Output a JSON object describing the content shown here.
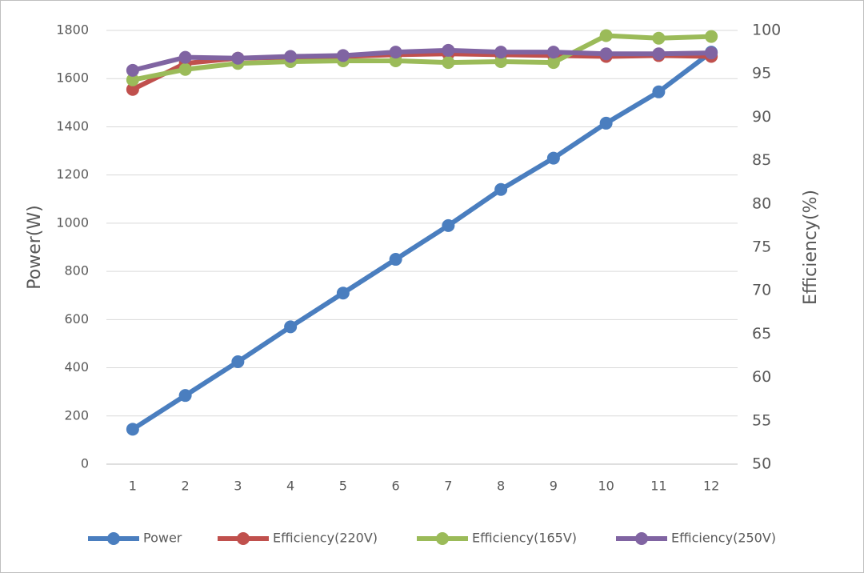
{
  "chart_data": {
    "type": "line",
    "categories": [
      "1",
      "2",
      "3",
      "4",
      "5",
      "6",
      "7",
      "8",
      "9",
      "10",
      "11",
      "12"
    ],
    "y_label": "Power(W)",
    "y2_label": "Efficiency(%)",
    "ylim": [
      0,
      1800
    ],
    "yticks": [
      0,
      200,
      400,
      600,
      800,
      1000,
      1200,
      1400,
      1600,
      1800
    ],
    "y2lim": [
      50,
      100
    ],
    "y2ticks": [
      50,
      55,
      60,
      65,
      70,
      75,
      80,
      85,
      90,
      95,
      100
    ],
    "grid": true,
    "legend": "bottom",
    "series": [
      {
        "name": "Power",
        "color": "#4a7ebf",
        "values": [
          145,
          285,
          425,
          570,
          710,
          850,
          990,
          1140,
          1270,
          1415,
          1545,
          1710
        ]
      },
      {
        "name": "Efficiency(220V)",
        "color": "#c0504d",
        "axis": "y2",
        "values": [
          93.2,
          96.2,
          96.8,
          96.9,
          97.0,
          97.2,
          97.3,
          97.2,
          97.1,
          97.0,
          97.1,
          97.0
        ]
      },
      {
        "name": "Efficiency(165V)",
        "color": "#9bbb59",
        "axis": "y2",
        "values": [
          94.3,
          95.5,
          96.2,
          96.4,
          96.5,
          96.5,
          96.3,
          96.4,
          96.3,
          99.4,
          99.1,
          99.3
        ]
      },
      {
        "name": "Efficiency(250V)",
        "color": "#8064a2",
        "axis": "y2",
        "values": [
          95.4,
          96.9,
          96.8,
          97.0,
          97.1,
          97.5,
          97.7,
          97.5,
          97.5,
          97.3,
          97.3,
          97.4
        ]
      }
    ]
  }
}
